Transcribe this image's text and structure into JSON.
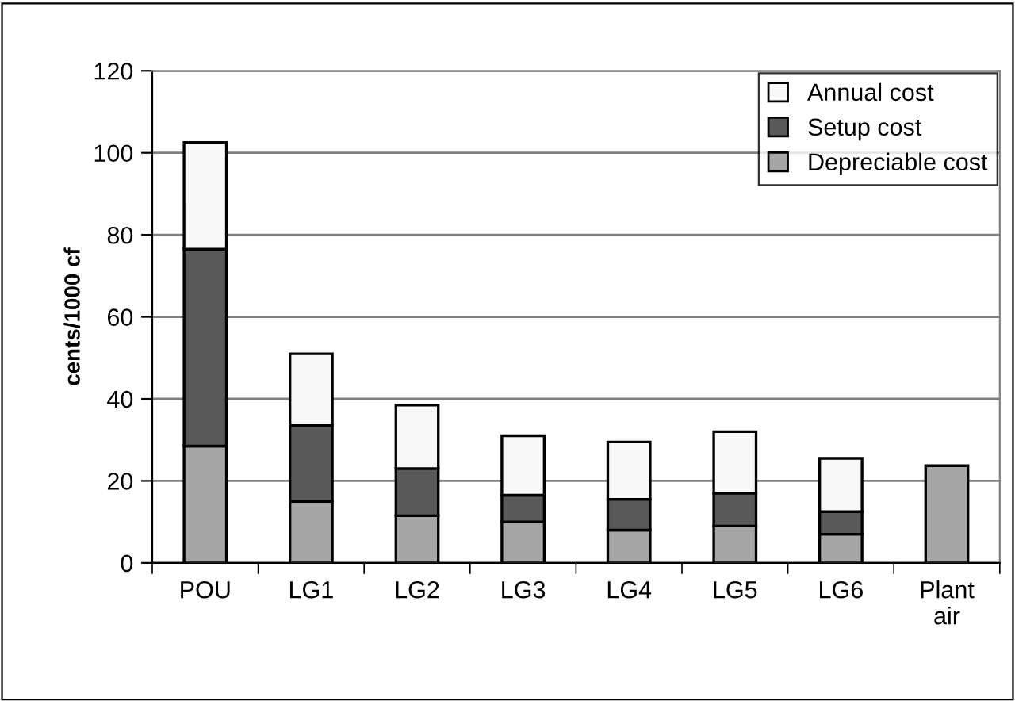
{
  "chart_data": {
    "type": "bar",
    "stacked": true,
    "ylabel": "cents/1000 cf",
    "categories": [
      "POU",
      "LG1",
      "LG2",
      "LG3",
      "LG4",
      "LG5",
      "LG6",
      "Plant\nair"
    ],
    "series": [
      {
        "name": "Depreciable cost",
        "color": "#a6a6a6",
        "values": [
          28.5,
          15,
          11.5,
          10,
          8,
          9,
          7,
          23.7
        ]
      },
      {
        "name": "Setup cost",
        "color": "#595959",
        "values": [
          48,
          18.5,
          11.5,
          6.5,
          7.5,
          8,
          5.5,
          null
        ]
      },
      {
        "name": "Annual cost",
        "color": "#f8f8f8",
        "values": [
          26,
          17.5,
          15.5,
          14.5,
          14,
          15,
          13,
          null
        ]
      }
    ],
    "ylim": [
      0,
      120
    ],
    "yticks": [
      0,
      20,
      40,
      60,
      80,
      100,
      120
    ],
    "grid": "y",
    "legend": "top right"
  }
}
